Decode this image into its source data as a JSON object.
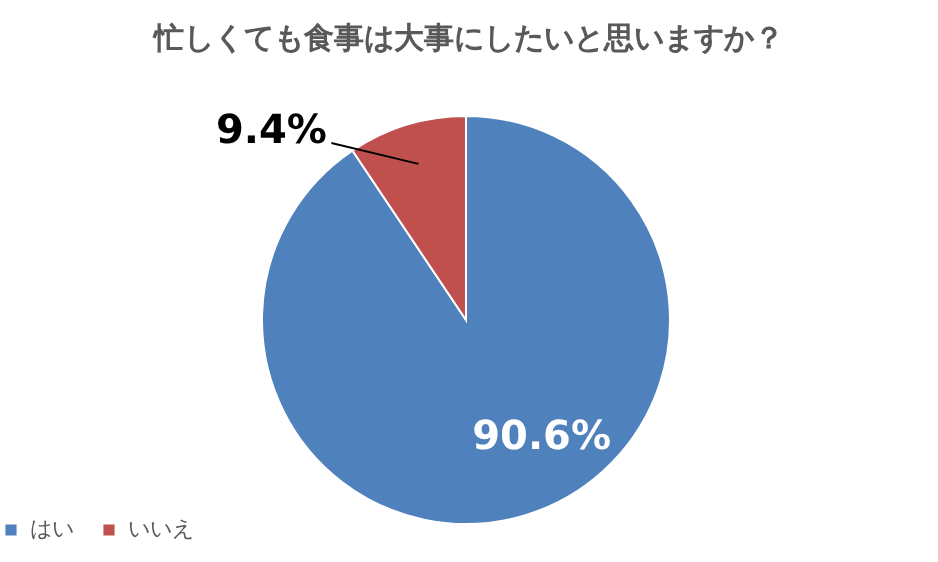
{
  "chart_data": {
    "type": "pie",
    "title": "忙しくても食事は大事にしたいと思いますか？",
    "categories": [
      "はい",
      "いいえ"
    ],
    "values": [
      90.6,
      9.4
    ],
    "colors": [
      "#4f81bd",
      "#c0504d"
    ],
    "value_labels": [
      "90.6%",
      "9.4%"
    ],
    "legend": "bottom"
  }
}
